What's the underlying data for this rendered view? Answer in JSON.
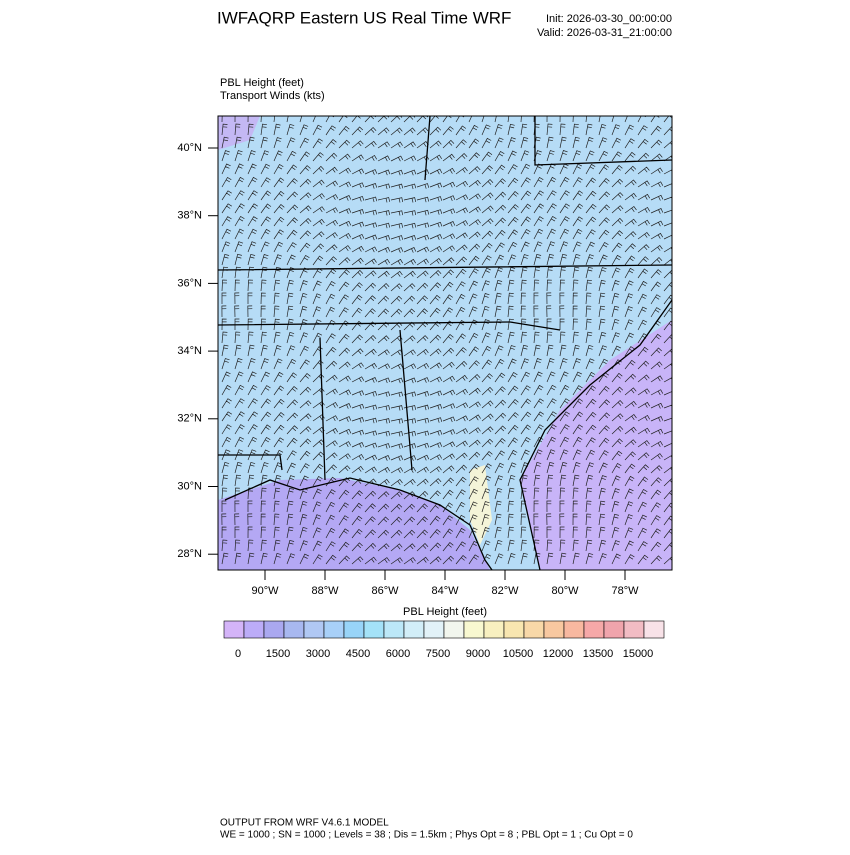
{
  "header": {
    "title": "IWFAQRP Eastern US Real Time WRF",
    "init": "Init: 2026-03-30_00:00:00",
    "valid": "Valid: 2026-03-31_21:00:00"
  },
  "fields": [
    "PBL Height   (feet)",
    "Transport Winds   (kts)"
  ],
  "map": {
    "lat_labels": [
      "40°N",
      "38°N",
      "36°N",
      "34°N",
      "32°N",
      "30°N",
      "28°N"
    ],
    "lon_labels": [
      "90°W",
      "88°W",
      "86°W",
      "84°W",
      "82°W",
      "80°W",
      "78°W"
    ]
  },
  "colorbar": {
    "title": "PBL Height  (feet)",
    "labels": [
      "0",
      "1500",
      "3000",
      "4500",
      "6000",
      "7500",
      "9000",
      "10500",
      "12000",
      "13500",
      "15000"
    ],
    "colors": [
      "#d4b4f8",
      "#bcacf8",
      "#aaa8f0",
      "#a8b8f0",
      "#b0c8f4",
      "#a8d0f8",
      "#98d4f8",
      "#a4e2f8",
      "#bce8f8",
      "#d2eef8",
      "#e2f2f8",
      "#f2f6ee",
      "#f8f8d0",
      "#f8f0c0",
      "#f8e6b0",
      "#f8d8a8",
      "#f8c8a0",
      "#f8b8a0",
      "#f6a8a8",
      "#f0a4ac",
      "#f2bcc4",
      "#f8e2e8"
    ]
  },
  "footer": [
    "OUTPUT FROM WRF V4.6.1 MODEL",
    "WE = 1000 ; SN = 1000 ; Levels = 38 ; Dis = 1.5km ; Phys Opt = 8 ; PBL Opt = 1 ; Cu Opt = 0"
  ]
}
